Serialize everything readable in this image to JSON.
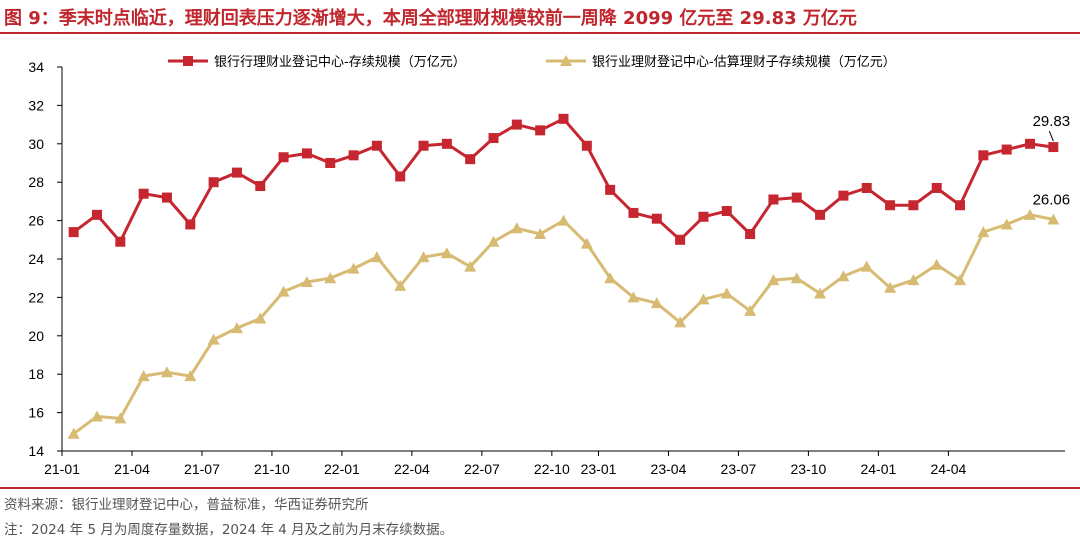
{
  "title": "图 9：季末时点临近，理财回表压力逐渐增大，本周全部理财规模较前一周降 2099 亿元至 29.83 万亿元",
  "source": "资料来源：银行业理财登记中心，普益标准，华西证券研究所",
  "note": "注：2024 年 5 月为周度存量数据，2024 年 4 月及之前为月末存续数据。",
  "colors": {
    "series1": "#c62630",
    "series2": "#d7bb72",
    "title": "#c0262d"
  },
  "chart_data": {
    "type": "line",
    "ylim": [
      14,
      34
    ],
    "yticks": [
      14,
      16,
      18,
      20,
      22,
      24,
      26,
      28,
      30,
      32,
      34
    ],
    "x_tick_labels": [
      "21-01",
      "21-04",
      "21-07",
      "21-10",
      "22-01",
      "22-04",
      "22-07",
      "22-10",
      "23-01",
      "23-04",
      "23-07",
      "23-10",
      "24-01",
      "24-04"
    ],
    "legend_position": "top",
    "grid": false,
    "x": [
      "21-01",
      "21-02",
      "21-03",
      "21-04",
      "21-05",
      "21-06",
      "21-07",
      "21-08",
      "21-09",
      "21-10",
      "21-11",
      "21-12",
      "22-01",
      "22-02",
      "22-03",
      "22-04",
      "22-05",
      "22-06",
      "22-07",
      "22-08",
      "22-09",
      "22-10",
      "22-11",
      "23-01",
      "23-02",
      "23-03",
      "23-04",
      "23-05",
      "23-06",
      "23-07",
      "23-08",
      "23-09",
      "23-10",
      "23-11",
      "23-12",
      "24-01",
      "24-02",
      "24-03",
      "24-04",
      "24-05-W1",
      "24-05-W2",
      "24-05-W3",
      "24-05-W4"
    ],
    "series": [
      {
        "name": "银行行理财业登记中心-存续规模（万亿元）",
        "marker": "square",
        "values": [
          25.4,
          26.3,
          24.9,
          27.4,
          27.2,
          25.8,
          28.0,
          28.5,
          27.8,
          29.3,
          29.5,
          29.0,
          29.4,
          29.9,
          28.3,
          29.9,
          30.0,
          29.2,
          30.3,
          31.0,
          30.7,
          31.3,
          29.9,
          27.6,
          26.4,
          26.1,
          25.0,
          26.2,
          26.5,
          25.3,
          27.1,
          27.2,
          26.3,
          27.3,
          27.7,
          26.8,
          26.8,
          27.7,
          26.8,
          29.4,
          29.7,
          30.0,
          29.83
        ]
      },
      {
        "name": "银行业理财登记中心-估算理财子存续规模（万亿元）",
        "marker": "triangle",
        "values": [
          14.9,
          15.8,
          15.7,
          17.9,
          18.1,
          17.9,
          19.8,
          20.4,
          20.9,
          22.3,
          22.8,
          23.0,
          23.5,
          24.1,
          22.6,
          24.1,
          24.3,
          23.6,
          24.9,
          25.6,
          25.3,
          26.0,
          24.8,
          23.0,
          22.0,
          21.7,
          20.7,
          21.9,
          22.2,
          21.3,
          22.9,
          23.0,
          22.2,
          23.1,
          23.6,
          22.5,
          22.9,
          23.7,
          22.9,
          25.4,
          25.8,
          26.3,
          26.06
        ]
      }
    ],
    "annotations": [
      {
        "series": 0,
        "text": "29.83"
      },
      {
        "series": 1,
        "text": "26.06"
      }
    ]
  }
}
